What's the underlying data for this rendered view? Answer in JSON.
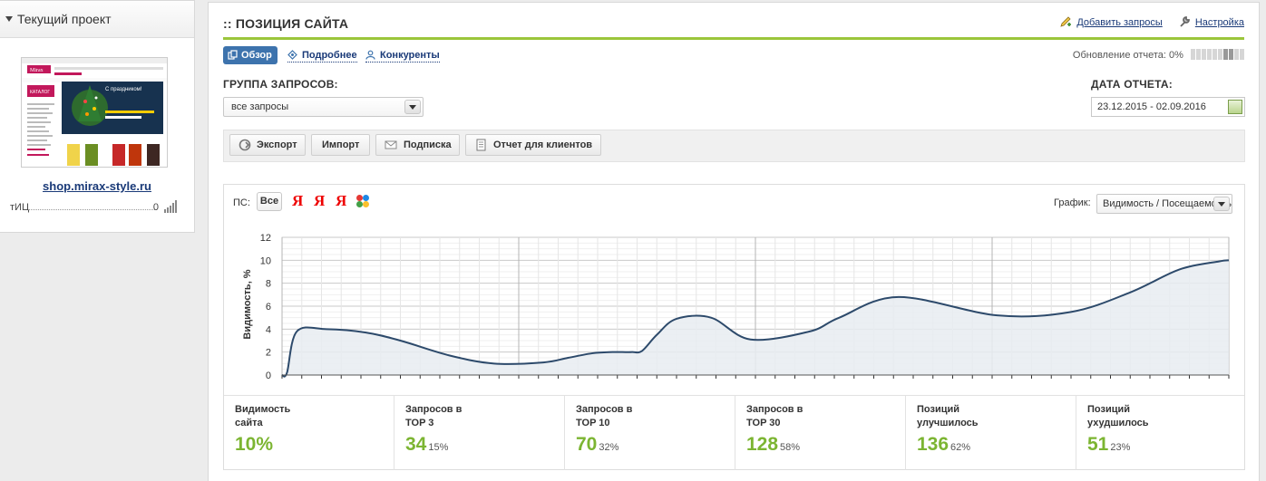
{
  "sidebar": {
    "header": "Текущий проект",
    "site": "shop.mirax-style.ru",
    "tic_label": "тИЦ",
    "tic_value": "0",
    "thumbnail": {
      "logo": "Mirax",
      "banner_text": "С праздником!",
      "nav_label": "КАТАЛОГ"
    }
  },
  "main": {
    "title": ":: ПОЗИЦИЯ САЙТА",
    "links": {
      "add_queries": "Добавить запросы",
      "settings": "Настройка"
    },
    "tabs": [
      {
        "label": "Обзор",
        "icon": "overview-icon"
      },
      {
        "label": "Подробнее",
        "icon": "details-icon"
      },
      {
        "label": "Конкуренты",
        "icon": "competitors-icon"
      }
    ],
    "update_label": "Обновление отчета: 0%",
    "update_progress": 0,
    "group_label": "ГРУППА ЗАПРОСОВ:",
    "group_value": "все запросы",
    "date_label": "ДАТА ОТЧЕТА:",
    "date_value": "23.12.2015 - 02.09.2016",
    "toolbar": {
      "export": "Экспорт",
      "import": "Импорт",
      "subscribe": "Подписка",
      "client_report": "Отчет для клиентов"
    },
    "ps_label": "ПС:",
    "ps_all": "Все",
    "ps_engines": [
      "Я",
      "Я",
      "Я"
    ],
    "graph_label": "График:",
    "graph_value": "Видимость / Посещаемость",
    "stats": [
      {
        "title": "Видимость сайта",
        "value": "10%",
        "percent": ""
      },
      {
        "title": "Запросов в TOP 3",
        "value": "34",
        "percent": "15%"
      },
      {
        "title": "Запросов в TOP 10",
        "value": "70",
        "percent": "32%"
      },
      {
        "title": "Запросов в TOP 30",
        "value": "128",
        "percent": "58%"
      },
      {
        "title": "Позиций улучшилось",
        "value": "136",
        "percent": "62%"
      },
      {
        "title": "Позиций ухудшилось",
        "value": "51",
        "percent": "23%"
      }
    ]
  },
  "chart_data": {
    "type": "area",
    "ylabel": "Видимость, %",
    "xlabel": "",
    "ylim": [
      0,
      12
    ],
    "yticks": [
      "0",
      "2",
      "4",
      "6",
      "8",
      "10",
      "12"
    ],
    "grid": true,
    "color": "#2d4a6b",
    "fill": "#e8ecf1",
    "x": [
      0,
      1,
      3,
      9,
      17,
      24,
      34,
      43,
      53,
      58,
      63,
      67,
      69,
      71,
      73,
      76,
      80,
      87,
      95,
      107,
      113,
      125,
      145,
      160,
      172,
      182,
      190,
      192
    ],
    "values": [
      0,
      0.2,
      3.8,
      4.0,
      3.7,
      3.0,
      1.7,
      1.0,
      1.1,
      1.5,
      1.9,
      2.0,
      2.0,
      2.0,
      2.1,
      3.5,
      4.9,
      5.0,
      3.1,
      3.8,
      5.0,
      6.8,
      5.2,
      5.5,
      7.2,
      9.2,
      9.9,
      10.0
    ]
  }
}
